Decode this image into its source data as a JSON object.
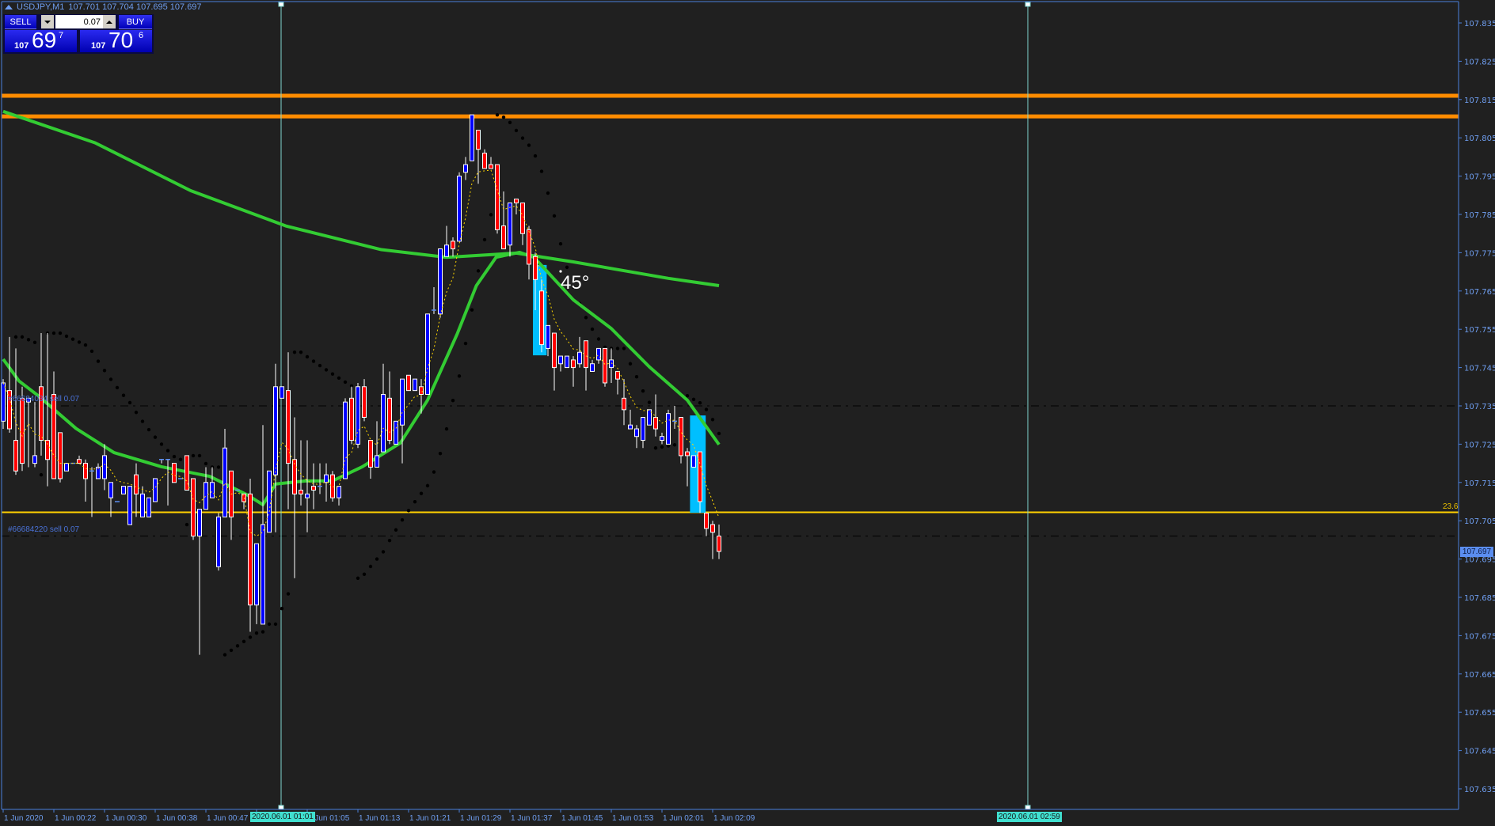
{
  "header": {
    "symbol": "USDJPY,M1",
    "ohlc": "107.701 107.704 107.695 107.697"
  },
  "trade_panel": {
    "sell_label": "SELL",
    "buy_label": "BUY",
    "lot_value": "0.07",
    "sell_price": {
      "prefix": "107",
      "big": "69",
      "pip": "7"
    },
    "buy_price": {
      "prefix": "107",
      "big": "70",
      "pip": "6"
    }
  },
  "colors": {
    "background": "#202020",
    "bull_candle": "#0000ff",
    "bear_candle": "#ff0000",
    "wick": "#ffffff",
    "ma": "#33cc33",
    "fast_ma_dotted": "#ffd700",
    "sar": "#000000",
    "resistance": "#ff8c00",
    "fib": "#ffd000",
    "rect": "#00bfff",
    "axis": "#4a7fdb",
    "vline": "#7fd6d0"
  },
  "price_axis": {
    "max": 107.835,
    "min": 107.635,
    "step": 0.01,
    "labels": [
      "107.835",
      "107.825",
      "107.815",
      "107.805",
      "107.795",
      "107.785",
      "107.775",
      "107.765",
      "107.755",
      "107.745",
      "107.735",
      "107.725",
      "107.715",
      "107.705",
      "107.695",
      "107.685",
      "107.675",
      "107.665",
      "107.655",
      "107.645",
      "107.635"
    ],
    "current_price": "107.697"
  },
  "time_axis": {
    "labels": [
      "1 Jun 2020",
      "1 Jun 00:22",
      "1 Jun 00:30",
      "1 Jun 00:38",
      "1 Jun 00:47",
      "1 Jun 01:05",
      "1 Jun 01:13",
      "1 Jun 01:21",
      "1 Jun 01:29",
      "1 Jun 01:37",
      "1 Jun 01:45",
      "1 Jun 01:53",
      "1 Jun 02:01",
      "1 Jun 02:09"
    ],
    "vline_labels": [
      "2020.06.01 01:01",
      "2020.06.01 02:59"
    ]
  },
  "horizontal_lines": {
    "resistance": [
      107.816,
      107.8106
    ],
    "fib": {
      "price": 107.7072,
      "label": "23.6"
    },
    "orders": [
      {
        "price": 107.735,
        "label": "#66684034 sell 0.07"
      },
      {
        "price": 107.701,
        "label": "#66684220 sell 0.07"
      }
    ]
  },
  "annotation": {
    "angle_text": "45°"
  },
  "rectangles": [
    {
      "from_candle": 84,
      "to_candle": 85.8,
      "top": 107.7718,
      "bottom": 107.7482
    },
    {
      "from_candle": 108.8,
      "to_candle": 110.9,
      "top": 107.7325,
      "bottom": 107.7071
    }
  ],
  "chart": {
    "type": "candlestick",
    "candles_ohlc": [
      [
        107.731,
        107.742,
        107.729,
        107.741
      ],
      [
        107.739,
        107.753,
        107.728,
        107.729
      ],
      [
        107.726,
        107.75,
        107.717,
        107.718
      ],
      [
        107.737,
        107.74,
        107.718,
        107.72
      ],
      [
        107.736,
        107.737,
        107.719,
        107.737
      ],
      [
        107.72,
        107.736,
        107.719,
        107.722
      ],
      [
        107.74,
        107.754,
        107.722,
        107.726
      ],
      [
        107.726,
        107.754,
        107.714,
        107.721
      ],
      [
        107.738,
        107.744,
        107.716,
        107.716
      ],
      [
        107.728,
        107.728,
        107.715,
        107.716
      ],
      [
        107.718,
        107.72,
        107.718,
        107.72
      ],
      [
        107.72,
        107.72,
        107.72,
        107.72
      ],
      [
        107.721,
        107.722,
        107.72,
        107.72
      ],
      [
        107.72,
        107.721,
        107.71,
        107.716
      ],
      [
        107.718,
        107.719,
        107.706,
        107.718
      ],
      [
        107.716,
        107.72,
        107.716,
        107.719
      ],
      [
        107.716,
        107.725,
        107.713,
        107.722
      ],
      [
        107.711,
        107.715,
        107.706,
        107.715
      ],
      [
        107.71,
        107.71,
        107.71,
        107.71
      ],
      [
        107.712,
        107.714,
        107.712,
        107.714
      ],
      [
        107.704,
        107.714,
        107.704,
        107.714
      ],
      [
        107.717,
        107.72,
        107.706,
        107.712
      ],
      [
        107.706,
        107.714,
        107.706,
        107.712
      ],
      [
        107.706,
        107.711,
        107.706,
        107.711
      ],
      [
        107.71,
        107.716,
        107.71,
        107.716
      ],
      [
        107.721,
        107.721,
        107.72,
        107.721
      ],
      [
        107.721,
        107.721,
        107.709,
        107.721
      ],
      [
        107.72,
        107.72,
        107.715,
        107.715
      ],
      [
        107.716,
        107.716,
        107.716,
        107.716
      ],
      [
        107.722,
        107.722,
        107.713,
        107.713
      ],
      [
        107.716,
        107.716,
        107.7,
        107.701
      ],
      [
        107.701,
        107.708,
        107.67,
        107.708
      ],
      [
        107.708,
        107.719,
        107.708,
        107.715
      ],
      [
        107.711,
        107.719,
        107.711,
        107.715
      ],
      [
        107.693,
        107.707,
        107.692,
        107.706
      ],
      [
        107.706,
        107.729,
        107.706,
        107.724
      ],
      [
        107.718,
        107.718,
        107.7,
        107.706
      ],
      [
        107.713,
        107.713,
        107.713,
        107.713
      ],
      [
        107.712,
        107.712,
        107.708,
        107.71
      ],
      [
        107.712,
        107.716,
        107.676,
        107.683
      ],
      [
        107.683,
        107.699,
        107.678,
        107.699
      ],
      [
        107.678,
        107.73,
        107.678,
        107.704
      ],
      [
        107.702,
        107.718,
        107.702,
        107.718
      ],
      [
        107.717,
        107.746,
        107.702,
        107.74
      ],
      [
        107.737,
        107.74,
        107.737,
        107.74
      ],
      [
        107.739,
        107.749,
        107.708,
        107.72
      ],
      [
        107.721,
        107.732,
        107.69,
        107.712
      ],
      [
        107.713,
        107.726,
        107.709,
        107.712
      ],
      [
        107.711,
        107.726,
        107.702,
        107.712
      ],
      [
        107.714,
        107.72,
        107.708,
        107.713
      ],
      [
        107.714,
        107.72,
        107.712,
        107.714
      ],
      [
        107.715,
        107.72,
        107.71,
        107.717
      ],
      [
        107.717,
        107.718,
        107.71,
        107.711
      ],
      [
        107.711,
        107.714,
        107.709,
        107.714
      ],
      [
        107.716,
        107.737,
        107.716,
        107.736
      ],
      [
        107.737,
        107.74,
        107.725,
        107.726
      ],
      [
        107.725,
        107.741,
        107.724,
        107.74
      ],
      [
        107.74,
        107.742,
        107.731,
        107.732
      ],
      [
        107.726,
        107.726,
        107.716,
        107.719
      ],
      [
        107.719,
        107.731,
        107.719,
        107.722
      ],
      [
        107.723,
        107.746,
        107.723,
        107.738
      ],
      [
        107.737,
        107.744,
        107.725,
        107.726
      ],
      [
        107.725,
        107.731,
        107.725,
        107.731
      ],
      [
        107.73,
        107.742,
        107.72,
        107.742
      ],
      [
        107.743,
        107.743,
        107.739,
        107.739
      ],
      [
        107.739,
        107.742,
        107.739,
        107.742
      ],
      [
        107.74,
        107.742,
        107.733,
        107.738
      ],
      [
        107.738,
        107.759,
        107.738,
        107.759
      ],
      [
        107.76,
        107.766,
        107.759,
        107.76
      ],
      [
        107.759,
        107.776,
        107.758,
        107.776
      ],
      [
        107.774,
        107.782,
        107.774,
        107.777
      ],
      [
        107.778,
        107.779,
        107.774,
        107.776
      ],
      [
        107.778,
        107.796,
        107.778,
        107.795
      ],
      [
        107.796,
        107.8,
        107.794,
        107.798
      ],
      [
        107.799,
        107.811,
        107.799,
        107.811
      ],
      [
        107.807,
        107.807,
        107.793,
        107.802
      ],
      [
        107.801,
        107.802,
        107.797,
        107.797
      ],
      [
        107.798,
        107.8,
        107.797,
        107.797
      ],
      [
        107.798,
        107.798,
        107.78,
        107.781
      ],
      [
        107.782,
        107.791,
        107.776,
        107.776
      ],
      [
        107.777,
        107.788,
        107.774,
        107.788
      ],
      [
        107.789,
        107.789,
        107.785,
        107.788
      ],
      [
        107.788,
        107.788,
        107.777,
        107.78
      ],
      [
        107.781,
        107.782,
        107.768,
        107.772
      ],
      [
        107.774,
        107.775,
        107.76,
        107.768
      ],
      [
        107.765,
        107.768,
        107.749,
        107.751
      ],
      [
        107.75,
        107.756,
        107.748,
        107.756
      ],
      [
        107.754,
        107.754,
        107.739,
        107.745
      ],
      [
        107.746,
        107.748,
        107.744,
        107.748
      ],
      [
        107.745,
        107.748,
        107.745,
        107.748
      ],
      [
        107.747,
        107.748,
        107.74,
        107.745
      ],
      [
        107.746,
        107.753,
        107.745,
        107.749
      ],
      [
        107.752,
        107.752,
        107.739,
        107.745
      ],
      [
        107.744,
        107.747,
        107.744,
        107.746
      ],
      [
        107.747,
        107.75,
        107.746,
        107.75
      ],
      [
        107.75,
        107.75,
        107.74,
        107.741
      ],
      [
        107.745,
        107.75,
        107.741,
        107.747
      ],
      [
        107.744,
        107.744,
        107.738,
        107.742
      ],
      [
        107.737,
        107.742,
        107.73,
        107.734
      ],
      [
        107.729,
        107.734,
        107.729,
        107.73
      ],
      [
        107.727,
        107.73,
        107.724,
        107.729
      ],
      [
        107.726,
        107.732,
        107.724,
        107.732
      ],
      [
        107.73,
        107.734,
        107.73,
        107.734
      ],
      [
        107.732,
        107.738,
        107.727,
        107.729
      ],
      [
        107.726,
        107.728,
        107.725,
        107.727
      ],
      [
        107.725,
        107.734,
        107.725,
        107.733
      ],
      [
        107.731,
        107.735,
        107.729,
        107.731
      ],
      [
        107.732,
        107.732,
        107.72,
        107.722
      ],
      [
        107.723,
        107.724,
        107.714,
        107.722
      ],
      [
        107.719,
        107.722,
        107.719,
        107.722
      ],
      [
        107.723,
        107.723,
        107.707,
        107.71
      ],
      [
        107.707,
        107.707,
        107.701,
        107.703
      ],
      [
        107.704,
        107.705,
        107.695,
        107.702
      ],
      [
        107.701,
        107.704,
        107.695,
        107.697
      ]
    ],
    "slow_ma": [
      [
        0,
        107.8119
      ],
      [
        14.5,
        107.8037
      ],
      [
        29.6,
        107.7912
      ],
      [
        44.6,
        107.782
      ],
      [
        59.7,
        107.7758
      ],
      [
        70,
        107.7738
      ],
      [
        81,
        107.7749
      ],
      [
        90,
        107.7726
      ],
      [
        105,
        107.7683
      ],
      [
        113,
        107.7664
      ]
    ],
    "fast_ma": [
      [
        0,
        107.7472
      ],
      [
        2.5,
        107.7415
      ],
      [
        5.5,
        107.7377
      ],
      [
        11.5,
        107.7291
      ],
      [
        17.5,
        107.7228
      ],
      [
        25,
        107.7191
      ],
      [
        32.6,
        107.7166
      ],
      [
        38.6,
        107.7117
      ],
      [
        41,
        107.7092
      ],
      [
        43,
        107.7146
      ],
      [
        47.7,
        107.7154
      ],
      [
        52,
        107.7154
      ],
      [
        56.7,
        107.7191
      ],
      [
        62.7,
        107.7253
      ],
      [
        67,
        107.7365
      ],
      [
        71.7,
        107.7539
      ],
      [
        74.7,
        107.7664
      ],
      [
        77.8,
        107.7738
      ],
      [
        81.5,
        107.7751
      ],
      [
        83.8,
        107.7738
      ],
      [
        90,
        107.7627
      ],
      [
        96,
        107.7552
      ],
      [
        102,
        107.7452
      ],
      [
        108,
        107.7365
      ],
      [
        113,
        107.7249
      ]
    ]
  }
}
